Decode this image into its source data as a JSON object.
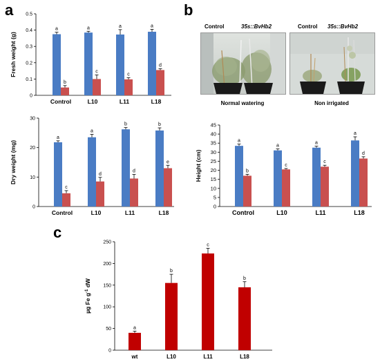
{
  "panels": {
    "a": "a",
    "b": "b",
    "c": "c"
  },
  "photos": {
    "left": {
      "label_control": "Control",
      "label_transgenic": "35s::BvHb2",
      "caption": "Normal watering"
    },
    "right": {
      "label_control": "Control",
      "label_transgenic": "35s::BvHb2",
      "caption": "Non irrigated"
    }
  },
  "colors": {
    "blue": "#4a7cc4",
    "red": "#c9504f",
    "darkred": "#c00000"
  },
  "chart_data": [
    {
      "id": "fresh",
      "type": "bar",
      "ylabel": "Fresh weight (g)",
      "xlabel": "",
      "ylim": [
        0,
        0.5
      ],
      "yticks": [
        "0",
        "0.1",
        "0.2",
        "0.3",
        "0.4",
        "0.5"
      ],
      "categories": [
        "Control",
        "L10",
        "L11",
        "L18"
      ],
      "series": [
        {
          "color": "blue",
          "values": [
            0.375,
            0.385,
            0.373,
            0.39
          ],
          "errors": [
            0.012,
            0.008,
            0.03,
            0.015
          ],
          "letters": [
            "a",
            "a",
            "a",
            "a"
          ]
        },
        {
          "color": "red",
          "values": [
            0.048,
            0.1,
            0.098,
            0.155
          ],
          "errors": [
            0.012,
            0.025,
            0.01,
            0.008
          ],
          "letters": [
            "b",
            "c",
            "c",
            "d"
          ]
        }
      ]
    },
    {
      "id": "dry",
      "type": "bar",
      "ylabel": "Dry weight (mg)",
      "xlabel": "",
      "ylim": [
        0,
        30
      ],
      "yticks": [
        "0",
        "10",
        "20",
        "30"
      ],
      "categories": [
        "Control",
        "L10",
        "L11",
        "L18"
      ],
      "series": [
        {
          "color": "blue",
          "values": [
            21.8,
            23.5,
            26.2,
            25.8
          ],
          "errors": [
            0.5,
            1.0,
            0.6,
            0.9
          ],
          "letters": [
            "a",
            "a",
            "b",
            "b"
          ]
        },
        {
          "color": "red",
          "values": [
            4.5,
            8.5,
            9.5,
            13
          ],
          "errors": [
            0.9,
            1.4,
            1.4,
            1.0
          ],
          "letters": [
            "c",
            "d",
            "d",
            "e"
          ]
        }
      ]
    },
    {
      "id": "height",
      "type": "bar",
      "ylabel": "Height (cm)",
      "xlabel": "",
      "ylim": [
        0,
        45
      ],
      "yticks": [
        "0",
        "5",
        "10",
        "15",
        "20",
        "25",
        "30",
        "35",
        "40",
        "45"
      ],
      "categories": [
        "Control",
        "L10",
        "L11",
        "L18"
      ],
      "series": [
        {
          "color": "blue",
          "values": [
            33.5,
            31,
            32.5,
            36.5
          ],
          "errors": [
            1.0,
            0.8,
            0.8,
            2.0
          ],
          "letters": [
            "a",
            "a",
            "a",
            "a"
          ]
        },
        {
          "color": "red",
          "values": [
            17,
            20.5,
            22,
            26.5
          ],
          "errors": [
            0.8,
            0.5,
            0.8,
            1.0
          ],
          "letters": [
            "b",
            "c",
            "c",
            "d"
          ]
        }
      ]
    },
    {
      "id": "iron",
      "type": "bar",
      "ylabel_main": "µg Fe g",
      "ylabel_sup": "-1",
      "ylabel_tail": " dW",
      "xlabel": "",
      "ylim": [
        0,
        250
      ],
      "yticks": [
        "0",
        "50",
        "100",
        "150",
        "200",
        "250"
      ],
      "categories": [
        "wt",
        "L10",
        "L11",
        "L18"
      ],
      "series": [
        {
          "color": "darkred",
          "values": [
            40,
            155,
            223,
            145
          ],
          "errors": [
            4,
            20,
            12,
            13
          ],
          "letters": [
            "a",
            "b",
            "c",
            "b"
          ]
        }
      ]
    }
  ]
}
